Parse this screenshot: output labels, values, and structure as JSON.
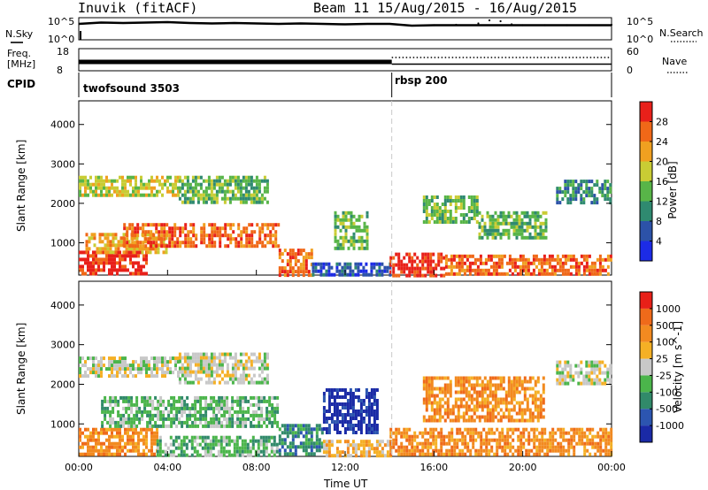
{
  "header": {
    "title": "Inuvik (fitACF)",
    "beam_info": "Beam 11  15/Aug/2015 - 16/Aug/2015"
  },
  "colors": {
    "line": "#000000",
    "dashed_marker": "#c8c8c8",
    "power_scale": [
      "#1c2be6",
      "#2c52a8",
      "#2f8a70",
      "#58b548",
      "#c9cc34",
      "#f0a020",
      "#f06818",
      "#e8201a"
    ],
    "velocity_scale": [
      "#1a2aa6",
      "#2c55b0",
      "#318a6a",
      "#4bb54b",
      "#c8c8c8",
      "#f5b025",
      "#f28a20",
      "#ef6a1a",
      "#e82018"
    ]
  },
  "chart_data": [
    {
      "type": "line",
      "panel": "nsky",
      "ylabel": "N.Sky",
      "ytick_labels": [
        "10^5",
        "10^0"
      ],
      "right_label": "N.Search",
      "right_tick_labels": [
        "10^5",
        "10^0"
      ],
      "ylim": [
        0,
        5
      ],
      "series": [
        {
          "style": "solid",
          "x": [
            0,
            1,
            2,
            3,
            4,
            5,
            6,
            7,
            8,
            9,
            10,
            11,
            12,
            13,
            14,
            15,
            16,
            17,
            18,
            19,
            20,
            21,
            22,
            23,
            24
          ],
          "y": [
            3.6,
            3.9,
            3.8,
            3.9,
            4.0,
            3.8,
            3.7,
            3.8,
            3.7,
            3.6,
            3.7,
            3.6,
            3.5,
            3.6,
            3.6,
            3.2,
            3.3,
            3.3,
            3.3,
            3.3,
            3.3,
            3.3,
            3.3,
            3.3,
            3.3
          ]
        },
        {
          "style": "dotted",
          "x": [
            16,
            17,
            18,
            18.5,
            19,
            19.5,
            20,
            21,
            22,
            23,
            24
          ],
          "y": [
            3.3,
            3.4,
            3.7,
            4.4,
            4.2,
            3.5,
            3.3,
            3.3,
            3.3,
            3.3,
            3.4
          ]
        }
      ]
    },
    {
      "type": "line",
      "panel": "freq",
      "ylabel": "Freq.",
      "yunit": "[MHz]",
      "ytick_labels": [
        "18",
        "8"
      ],
      "right_label": "Nave",
      "right_tick_labels": [
        "60",
        "0"
      ],
      "series": [
        {
          "style": "band",
          "x_start": 0,
          "x_end": 14.1,
          "low": 11,
          "high": 13
        },
        {
          "style": "solid",
          "x_start": 14.1,
          "x_end": 24,
          "value": 11
        },
        {
          "style": "dotted",
          "x_start": 14.1,
          "x_end": 24,
          "value": 14
        }
      ]
    },
    {
      "type": "table",
      "panel": "cpid",
      "label": "CPID",
      "segments": [
        {
          "name": "twofsound 3503",
          "start": 0,
          "end": 14.1
        },
        {
          "name": "rbsp 200",
          "start": 14.1,
          "end": 24
        }
      ]
    },
    {
      "type": "heatmap",
      "panel": "power",
      "ylabel": "Slant Range [km]",
      "ylim": [
        180,
        4600
      ],
      "ytick_labels": [
        "1000",
        "2000",
        "3000",
        "4000"
      ],
      "yticks": [
        1000,
        2000,
        3000,
        4000
      ],
      "colorbar_label": "Power [dB]",
      "colorbar_ticks": [
        "4",
        "8",
        "12",
        "16",
        "20",
        "24",
        "28"
      ],
      "colorbar_range": [
        0,
        32
      ],
      "regions": [
        {
          "t": [
            0.0,
            3.0
          ],
          "r": [
            200,
            800
          ],
          "level": 7
        },
        {
          "t": [
            0.3,
            4.0
          ],
          "r": [
            800,
            1250
          ],
          "level": 5
        },
        {
          "t": [
            2.0,
            9.0
          ],
          "r": [
            900,
            1500
          ],
          "level": 6
        },
        {
          "t": [
            0.0,
            4.5
          ],
          "r": [
            2200,
            2700
          ],
          "level": 4
        },
        {
          "t": [
            4.5,
            8.5
          ],
          "r": [
            2000,
            2700
          ],
          "level": 3
        },
        {
          "t": [
            9.0,
            10.5
          ],
          "r": [
            200,
            850
          ],
          "level": 6
        },
        {
          "t": [
            10.5,
            14.0
          ],
          "r": [
            200,
            500
          ],
          "level": 1
        },
        {
          "t": [
            11.5,
            13.0
          ],
          "r": [
            900,
            1800
          ],
          "level": 3
        },
        {
          "t": [
            14.0,
            16.5
          ],
          "r": [
            200,
            750
          ],
          "level": 7
        },
        {
          "t": [
            16.5,
            24.0
          ],
          "r": [
            200,
            700
          ],
          "level": 6
        },
        {
          "t": [
            15.5,
            18.0
          ],
          "r": [
            1500,
            2200
          ],
          "level": 3
        },
        {
          "t": [
            18.0,
            21.0
          ],
          "r": [
            1100,
            1800
          ],
          "level": 3
        },
        {
          "t": [
            21.5,
            24.0
          ],
          "r": [
            2000,
            2600
          ],
          "level": 2
        }
      ]
    },
    {
      "type": "heatmap",
      "panel": "velocity",
      "ylabel": "Slant Range [km]",
      "ylim": [
        180,
        4600
      ],
      "ytick_labels": [
        "1000",
        "2000",
        "3000",
        "4000"
      ],
      "yticks": [
        1000,
        2000,
        3000,
        4000
      ],
      "colorbar_label": "Velocity [m s^-1]",
      "colorbar_ticks": [
        "1000",
        "500",
        "100",
        "25",
        "-25",
        "-100",
        "-500",
        "-1000"
      ],
      "regions": [
        {
          "t": [
            0.0,
            3.5
          ],
          "r": [
            200,
            900
          ],
          "level": 6
        },
        {
          "t": [
            1.0,
            9.0
          ],
          "r": [
            900,
            1700
          ],
          "level": 3
        },
        {
          "t": [
            0.0,
            4.5
          ],
          "r": [
            2200,
            2700
          ],
          "level": 4
        },
        {
          "t": [
            4.5,
            8.5
          ],
          "r": [
            2000,
            2800
          ],
          "level": 4
        },
        {
          "t": [
            3.5,
            9.0
          ],
          "r": [
            200,
            700
          ],
          "level": 3
        },
        {
          "t": [
            9.0,
            11.0
          ],
          "r": [
            200,
            1000
          ],
          "level": 2
        },
        {
          "t": [
            11.0,
            13.5
          ],
          "r": [
            800,
            1900
          ],
          "level": 0
        },
        {
          "t": [
            11.0,
            14.0
          ],
          "r": [
            200,
            600
          ],
          "level": 5
        },
        {
          "t": [
            14.0,
            24.0
          ],
          "r": [
            200,
            900
          ],
          "level": 6
        },
        {
          "t": [
            15.5,
            21.0
          ],
          "r": [
            1100,
            2200
          ],
          "level": 6
        },
        {
          "t": [
            21.5,
            24.0
          ],
          "r": [
            2000,
            2600
          ],
          "level": 4
        }
      ]
    }
  ],
  "xaxis": {
    "xlabel": "Time UT",
    "xlim": [
      0,
      24
    ],
    "ticks": [
      0,
      4,
      8,
      12,
      16,
      20,
      24
    ],
    "tick_labels": [
      "00:00",
      "04:00",
      "08:00",
      "12:00",
      "16:00",
      "20:00",
      "00:00"
    ],
    "marker_time": 14.1
  }
}
